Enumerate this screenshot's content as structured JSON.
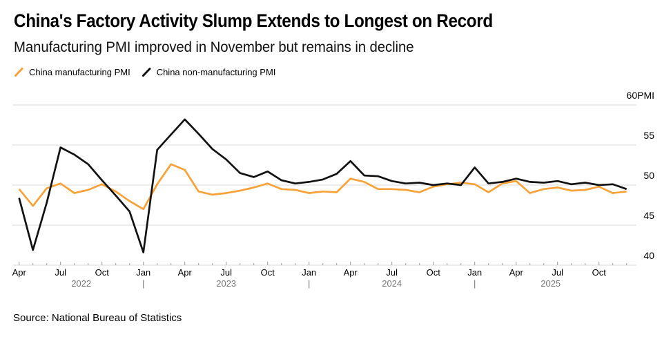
{
  "header": {
    "title": "China's Factory Activity Slump Extends to Longest on Record",
    "subtitle": "Manufacturing PMI improved in November but remains in decline"
  },
  "legend": [
    {
      "label": "China manufacturing PMI",
      "color": "#F7A238"
    },
    {
      "label": "China non-manufacturing PMI",
      "color": "#111111"
    }
  ],
  "source": "Source: National Bureau of Statistics",
  "chart_data": {
    "type": "line",
    "unit": "PMI",
    "x": [
      "Mar 2022",
      "Apr 2022",
      "May 2022",
      "Jun 2022",
      "Jul 2022",
      "Aug 2022",
      "Sep 2022",
      "Oct 2022",
      "Nov 2022",
      "Dec 2022",
      "Jan 2023",
      "Feb 2023",
      "Mar 2023",
      "Apr 2023",
      "May 2023",
      "Jun 2023",
      "Jul 2023",
      "Aug 2023",
      "Sep 2023",
      "Oct 2023",
      "Nov 2023",
      "Dec 2023",
      "Jan 2024",
      "Feb 2024",
      "Mar 2024",
      "Apr 2024",
      "May 2024",
      "Jun 2024",
      "Jul 2024",
      "Aug 2024",
      "Sep 2024",
      "Oct 2024",
      "Nov 2024",
      "Dec 2024",
      "Jan 2025",
      "Feb 2025",
      "Mar 2025",
      "Apr 2025",
      "May 2025",
      "Jun 2025",
      "Jul 2025",
      "Aug 2025",
      "Sep 2025",
      "Oct 2025",
      "Nov 2025"
    ],
    "series": [
      {
        "id": "manufacturing",
        "name": "China manufacturing PMI",
        "color": "#F7A238",
        "values": [
          49.5,
          47.4,
          49.6,
          50.2,
          49.0,
          49.4,
          50.1,
          49.2,
          48.0,
          47.0,
          50.1,
          52.6,
          51.9,
          49.2,
          48.8,
          49.0,
          49.3,
          49.7,
          50.2,
          49.5,
          49.4,
          49.0,
          49.2,
          49.1,
          50.8,
          50.4,
          49.5,
          49.5,
          49.4,
          49.1,
          49.8,
          50.1,
          50.3,
          50.1,
          49.1,
          50.2,
          50.5,
          49.0,
          49.5,
          49.7,
          49.3,
          49.4,
          49.8,
          49.0,
          49.2
        ]
      },
      {
        "id": "non-manufacturing",
        "name": "China non-manufacturing PMI",
        "color": "#111111",
        "values": [
          48.4,
          41.9,
          47.8,
          54.7,
          53.8,
          52.6,
          50.6,
          48.7,
          46.7,
          41.6,
          54.4,
          56.3,
          58.2,
          56.4,
          54.5,
          53.2,
          51.5,
          51.0,
          51.7,
          50.6,
          50.2,
          50.4,
          50.7,
          51.4,
          53.0,
          51.2,
          51.1,
          50.5,
          50.2,
          50.3,
          50.0,
          50.2,
          50.0,
          52.2,
          50.2,
          50.4,
          50.8,
          50.4,
          50.3,
          50.5,
          50.1,
          50.3,
          50.0,
          50.1,
          49.5
        ]
      }
    ],
    "x_tick_labels": [
      "Apr",
      "Jul",
      "Oct",
      "Jan",
      "Apr",
      "Jul",
      "Oct",
      "Jan",
      "Apr",
      "Jul",
      "Oct",
      "Jan",
      "Apr",
      "Jul",
      "Oct"
    ],
    "year_labels": [
      {
        "text": "2022",
        "pos": 4.5
      },
      {
        "text": "2023",
        "pos": 15
      },
      {
        "text": "2024",
        "pos": 27
      },
      {
        "text": "2025",
        "pos": 38.5
      }
    ],
    "year_separator": "|",
    "year_separator_positions": [
      9,
      21,
      33
    ],
    "y_axis": {
      "min": 40,
      "max": 60,
      "ticks": [
        {
          "value": 60,
          "label": "60PMI"
        },
        {
          "value": 55,
          "label": "55"
        },
        {
          "value": 50,
          "label": "50"
        },
        {
          "value": 45,
          "label": "45"
        },
        {
          "value": 40,
          "label": "40"
        }
      ]
    },
    "grid_on": true,
    "legend_position": "top-left",
    "grid_color": "#D9D9D9",
    "tick_color": "#9B9B9B",
    "axis_label_color": "#000000",
    "year_label_color": "#757575"
  }
}
